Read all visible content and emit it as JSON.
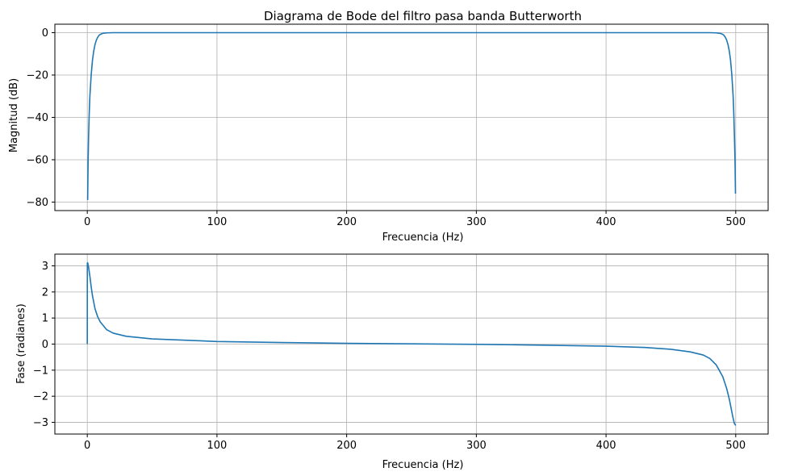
{
  "chart_data": [
    {
      "type": "line",
      "title": "Diagrama de Bode del filtro pasa banda Butterworth",
      "xlabel": "Frecuencia (Hz)",
      "ylabel": "Magnitud (dB)",
      "xlim": [
        -25,
        525
      ],
      "ylim": [
        -84,
        4
      ],
      "xticks": [
        0,
        100,
        200,
        300,
        400,
        500
      ],
      "xtick_labels": [
        "0",
        "100",
        "200",
        "300",
        "400",
        "500"
      ],
      "yticks": [
        0,
        -20,
        -40,
        -60,
        -80
      ],
      "ytick_labels": [
        "0",
        "−20",
        "−40",
        "−60",
        "−80"
      ],
      "grid": true,
      "line_color": "#1f77b4",
      "series": [
        {
          "x": [
            0.3,
            0.6,
            1,
            1.5,
            2,
            3,
            4,
            5,
            6,
            7,
            8,
            9,
            10,
            12,
            15,
            20,
            30,
            50,
            100,
            200,
            300,
            400,
            450,
            480,
            485,
            488,
            490,
            491,
            492,
            493,
            494,
            495,
            496,
            497,
            498,
            498.5,
            499,
            499.5,
            499.8
          ],
          "y": [
            -79,
            -62,
            -49,
            -38,
            -30,
            -20,
            -13,
            -8.5,
            -5.5,
            -3.5,
            -2.2,
            -1.3,
            -0.8,
            -0.3,
            -0.1,
            0,
            0,
            0,
            0,
            0,
            0,
            0,
            0,
            0,
            -0.1,
            -0.3,
            -0.8,
            -1.3,
            -2.2,
            -3.5,
            -5.5,
            -8.5,
            -13,
            -20,
            -30,
            -38,
            -49,
            -62,
            -76
          ]
        }
      ]
    },
    {
      "type": "line",
      "title": "",
      "xlabel": "Frecuencia (Hz)",
      "ylabel": "Fase (radianes)",
      "xlim": [
        -25,
        525
      ],
      "ylim": [
        -3.45,
        3.45
      ],
      "xticks": [
        0,
        100,
        200,
        300,
        400,
        500
      ],
      "xtick_labels": [
        "0",
        "100",
        "200",
        "300",
        "400",
        "500"
      ],
      "yticks": [
        3,
        2,
        1,
        0,
        -1,
        -2,
        -3
      ],
      "ytick_labels": [
        "3",
        "2",
        "1",
        "0",
        "−1",
        "−2",
        "−3"
      ],
      "grid": true,
      "line_color": "#1f77b4",
      "series": [
        {
          "x": [
            0,
            0.05,
            0.3,
            1,
            2,
            3,
            4,
            5,
            6,
            8,
            10,
            15,
            20,
            30,
            50,
            100,
            150,
            200,
            250,
            300,
            350,
            400,
            430,
            450,
            465,
            475,
            480,
            485,
            490,
            493,
            495,
            496,
            497,
            498,
            499,
            500
          ],
          "y": [
            0,
            3.1,
            3.12,
            2.95,
            2.6,
            2.2,
            1.85,
            1.6,
            1.35,
            1.05,
            0.85,
            0.55,
            0.42,
            0.3,
            0.2,
            0.1,
            0.06,
            0.03,
            0.01,
            -0.01,
            -0.04,
            -0.08,
            -0.13,
            -0.2,
            -0.3,
            -0.42,
            -0.55,
            -0.8,
            -1.25,
            -1.7,
            -2.1,
            -2.35,
            -2.6,
            -2.85,
            -3.05,
            -3.12
          ]
        }
      ]
    }
  ]
}
